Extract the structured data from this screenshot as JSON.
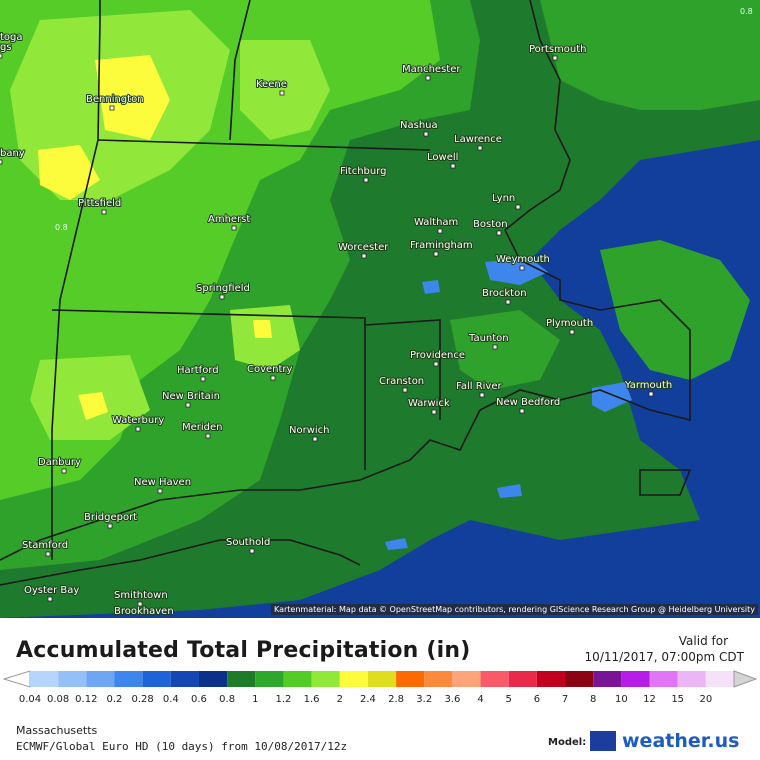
{
  "map": {
    "attribution": "Kartenmaterial: Map data © OpenStreetMap contributors, rendering GIScience Research Group @ Heidelberg University",
    "cities": [
      {
        "name": "toga",
        "label": "toga"
      },
      {
        "name": "gs",
        "label": "gs"
      },
      {
        "name": "Bennington",
        "label": "Bennington"
      },
      {
        "name": "Keene",
        "label": "Keene"
      },
      {
        "name": "Manchester",
        "label": "Manchester"
      },
      {
        "name": "Portsmouth",
        "label": "Portsmouth"
      },
      {
        "name": "Nashua",
        "label": "Nashua"
      },
      {
        "name": "Lawrence",
        "label": "Lawrence"
      },
      {
        "name": "Lowell",
        "label": "Lowell"
      },
      {
        "name": "bany",
        "label": "bany"
      },
      {
        "name": "Fitchburg",
        "label": "Fitchburg"
      },
      {
        "name": "Pittsfield",
        "label": "Pittsfield"
      },
      {
        "name": "Lynn",
        "label": "Lynn"
      },
      {
        "name": "Amherst",
        "label": "Amherst"
      },
      {
        "name": "Waltham",
        "label": "Waltham"
      },
      {
        "name": "Boston",
        "label": "Boston"
      },
      {
        "name": "Worcester",
        "label": "Worcester"
      },
      {
        "name": "Framingham",
        "label": "Framingham"
      },
      {
        "name": "Weymouth",
        "label": "Weymouth"
      },
      {
        "name": "Springfield",
        "label": "Springfield"
      },
      {
        "name": "Brockton",
        "label": "Brockton"
      },
      {
        "name": "Plymouth",
        "label": "Plymouth"
      },
      {
        "name": "Taunton",
        "label": "Taunton"
      },
      {
        "name": "Providence",
        "label": "Providence"
      },
      {
        "name": "Hartford",
        "label": "Hartford"
      },
      {
        "name": "Coventry",
        "label": "Coventry"
      },
      {
        "name": "Cranston",
        "label": "Cranston"
      },
      {
        "name": "Fall River",
        "label": "Fall River"
      },
      {
        "name": "Yarmouth",
        "label": "Yarmouth"
      },
      {
        "name": "New Britain",
        "label": "New Britain"
      },
      {
        "name": "Warwick",
        "label": "Warwick"
      },
      {
        "name": "New Bedford",
        "label": "New Bedford"
      },
      {
        "name": "Waterbury",
        "label": "Waterbury"
      },
      {
        "name": "Meriden",
        "label": "Meriden"
      },
      {
        "name": "Norwich",
        "label": "Norwich"
      },
      {
        "name": "Danbury",
        "label": "Danbury"
      },
      {
        "name": "New Haven",
        "label": "New Haven"
      },
      {
        "name": "Bridgeport",
        "label": "Bridgeport"
      },
      {
        "name": "Stamford",
        "label": "Stamford"
      },
      {
        "name": "Southold",
        "label": "Southold"
      },
      {
        "name": "Oyster Bay",
        "label": "Oyster Bay"
      },
      {
        "name": "Smithtown",
        "label": "Smithtown"
      },
      {
        "name": "Brookhaven",
        "label": "Brookhaven"
      }
    ],
    "contour_label": "0.8",
    "corner_label": "0.8"
  },
  "legend": {
    "title": "Accumulated Total Precipitation (in)",
    "valid_label": "Valid for",
    "valid_time": "10/11/2017, 07:00pm CDT",
    "units": "in",
    "bins": [
      {
        "label": "0.04",
        "color": "#b6d4fc"
      },
      {
        "label": "0.08",
        "color": "#94c0f8"
      },
      {
        "label": "0.12",
        "color": "#6ea6f4"
      },
      {
        "label": "0.2",
        "color": "#3e86ec"
      },
      {
        "label": "0.28",
        "color": "#1e64d8"
      },
      {
        "label": "0.4",
        "color": "#1447b4"
      },
      {
        "label": "0.6",
        "color": "#0c2f8a"
      },
      {
        "label": "0.8",
        "color": "#1f7a2a"
      },
      {
        "label": "1",
        "color": "#2ea82c"
      },
      {
        "label": "1.2",
        "color": "#54cc28"
      },
      {
        "label": "1.6",
        "color": "#90e83a"
      },
      {
        "label": "2",
        "color": "#fcfc3c"
      },
      {
        "label": "2.4",
        "color": "#dede1e"
      },
      {
        "label": "2.8",
        "color": "#fc6a04"
      },
      {
        "label": "3.2",
        "color": "#fc8a3c"
      },
      {
        "label": "3.6",
        "color": "#fca47a"
      },
      {
        "label": "4",
        "color": "#f85a6a"
      },
      {
        "label": "5",
        "color": "#ea2a4a"
      },
      {
        "label": "6",
        "color": "#c0001e"
      },
      {
        "label": "7",
        "color": "#8a0414"
      },
      {
        "label": "8",
        "color": "#7a1496"
      },
      {
        "label": "10",
        "color": "#b61ee8"
      },
      {
        "label": "12",
        "color": "#e076f6"
      },
      {
        "label": "15",
        "color": "#ecb6f6"
      },
      {
        "label": "20",
        "color": "#f6e2f8"
      }
    ],
    "end_color": "#d4d4d4",
    "region": "Massachusetts",
    "model_line": "ECMWF/Global Euro HD (10 days) from 10/08/2017/12z",
    "model_label": "Model:",
    "brand": "weather.us"
  }
}
